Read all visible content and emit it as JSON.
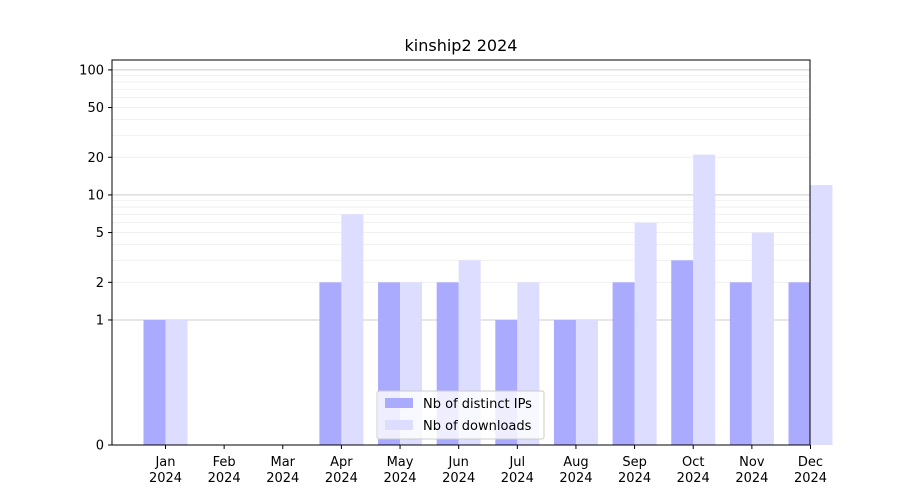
{
  "chart_data": {
    "type": "bar",
    "title": "kinship2 2024",
    "xlabel": "",
    "ylabel": "",
    "yscale": "symlog",
    "ylim": [
      0,
      120
    ],
    "y_ticks": [
      0,
      1,
      2,
      5,
      10,
      20,
      50,
      100
    ],
    "categories": [
      [
        "Jan",
        "2024"
      ],
      [
        "Feb",
        "2024"
      ],
      [
        "Mar",
        "2024"
      ],
      [
        "Apr",
        "2024"
      ],
      [
        "May",
        "2024"
      ],
      [
        "Jun",
        "2024"
      ],
      [
        "Jul",
        "2024"
      ],
      [
        "Aug",
        "2024"
      ],
      [
        "Sep",
        "2024"
      ],
      [
        "Oct",
        "2024"
      ],
      [
        "Nov",
        "2024"
      ],
      [
        "Dec",
        "2024"
      ]
    ],
    "series": [
      {
        "name": "Nb of distinct IPs",
        "color": "#aaaaff",
        "values": [
          1,
          0,
          0,
          2,
          2,
          2,
          1,
          1,
          2,
          3,
          2,
          2
        ]
      },
      {
        "name": "Nb of downloads",
        "color": "#ddddff",
        "values": [
          1,
          0,
          0,
          7,
          2,
          3,
          2,
          1,
          6,
          21,
          5,
          12
        ]
      }
    ],
    "grid": true,
    "legend_position": "bottom-center"
  }
}
